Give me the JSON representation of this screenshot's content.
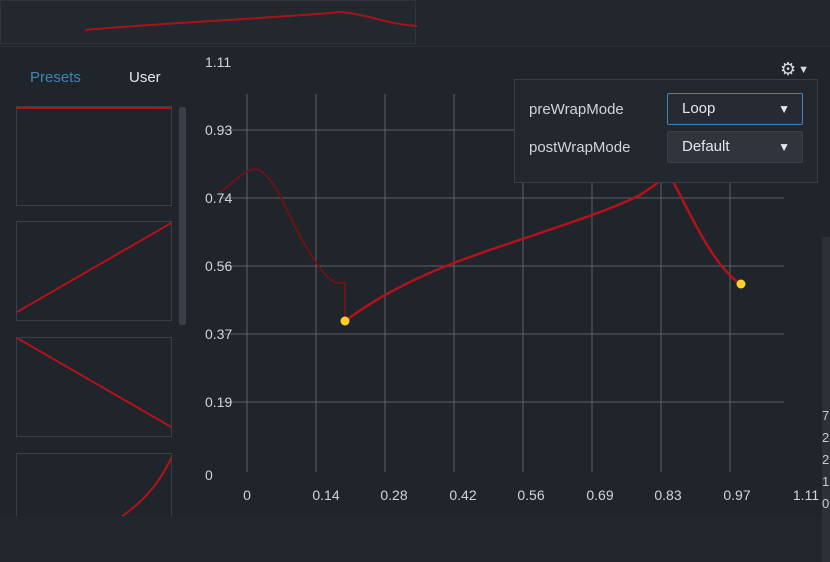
{
  "tabs": {
    "presets": "Presets",
    "user": "User"
  },
  "y_axis_labels": [
    "1.11",
    "0.93",
    "0.74",
    "0.56",
    "0.37",
    "0.19",
    "0"
  ],
  "x_axis_labels": [
    "0",
    "0.14",
    "0.28",
    "0.42",
    "0.56",
    "0.69",
    "0.83",
    "0.97",
    "1.11"
  ],
  "wrap_panel": {
    "pre_label": "preWrapMode",
    "pre_value": "Loop",
    "post_label": "postWrapMode",
    "post_value": "Default"
  },
  "right_edge_glyphs": [
    "7",
    "2",
    "2",
    "1",
    "0"
  ],
  "colors": {
    "curve": "#b3121b",
    "key": "#ffd12a",
    "accent": "#3d87b5",
    "grid": "#5c6068"
  },
  "icons": [
    "gear-icon",
    "caret-down-icon",
    "dropdown-arrow-icon"
  ]
}
